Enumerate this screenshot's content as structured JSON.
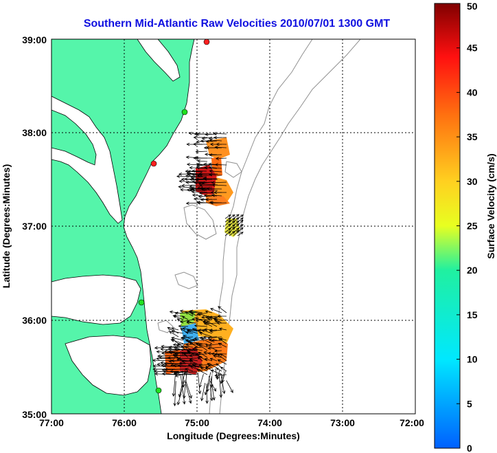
{
  "title": "Southern Mid-Atlantic Raw Velocities 2010/07/01 1300 GMT",
  "xlabel": "Longitude (Degrees:Minutes)",
  "ylabel": "Latitude (Degrees:Minutes)",
  "colorbar": {
    "label": "Surface Velocity (cm/s)",
    "min": 0,
    "max": 50,
    "ticks": [
      "0",
      "5",
      "10",
      "15",
      "20",
      "25",
      "30",
      "35",
      "40",
      "45",
      "50"
    ]
  },
  "map": {
    "lon_range": [
      -77,
      -72
    ],
    "lat_range": [
      35,
      39
    ],
    "x_ticks": [
      "77:00",
      "76:00",
      "75:00",
      "74:00",
      "73:00",
      "72:00"
    ],
    "y_ticks": [
      "35:00",
      "36:00",
      "37:00",
      "38:00",
      "39:00"
    ],
    "grid": true,
    "land_color": "#55f5aa",
    "water_color": "#ffffff",
    "contour_color": "#909090",
    "arrow_color": "#000000"
  },
  "chart_data": {
    "type": "heatmap",
    "title": "Southern Mid-Atlantic Raw Velocities 2010/07/01 1300 GMT",
    "xlabel": "Longitude (Degrees:Minutes)",
    "ylabel": "Latitude (Degrees:Minutes)",
    "xlim": [
      -77,
      -72
    ],
    "ylim": [
      35,
      39
    ],
    "colorbar_range": [
      0,
      50
    ],
    "regions": [
      {
        "lon": [
          -74.85,
          -74.62
        ],
        "lat": [
          37.55,
          37.95
        ],
        "speed": 32
      },
      {
        "lon": [
          -75.05,
          -74.55
        ],
        "lat": [
          37.3,
          37.6
        ],
        "speed": 45
      },
      {
        "lon": [
          -74.6,
          -74.45
        ],
        "lat": [
          36.9,
          37.1
        ],
        "speed": 24
      },
      {
        "lon": [
          -75.3,
          -74.55
        ],
        "lat": [
          35.5,
          36.15
        ],
        "speed": 30
      },
      {
        "lon": [
          -75.25,
          -75.05
        ],
        "lat": [
          35.7,
          35.95
        ],
        "speed": 12
      }
    ],
    "stations": [
      {
        "lon": -74.92,
        "lat": 38.98,
        "color": "#ff2020"
      },
      {
        "lon": -75.27,
        "lat": 38.2,
        "color": "#20e020"
      },
      {
        "lon": -75.5,
        "lat": 37.62,
        "color": "#ff2020"
      },
      {
        "lon": -75.65,
        "lat": 36.18,
        "color": "#20e020"
      },
      {
        "lon": -75.53,
        "lat": 35.33,
        "color": "#20e020"
      }
    ]
  }
}
